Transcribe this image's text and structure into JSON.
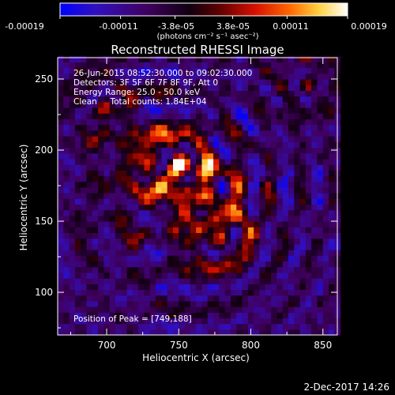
{
  "colorbar": {
    "tick_labels": [
      "-0.00019",
      "-0.00011",
      "-3.8e-05",
      "3.8e-05",
      "0.00011",
      "0.00019"
    ],
    "tick_values": [
      -0.00019,
      -0.00011,
      -3.8e-05,
      3.8e-05,
      0.00011,
      0.00019
    ],
    "range": [
      -0.00019,
      0.00019
    ],
    "units": "(photons cm⁻² s⁻¹ asec⁻²)",
    "colormap": [
      "#0000ff",
      "#3010c0",
      "#400060",
      "#000000",
      "#6a0000",
      "#d81000",
      "#ff6a00",
      "#ffd040",
      "#ffffff"
    ]
  },
  "footer": {
    "timestamp": "2-Dec-2017 14:26"
  },
  "chart_data": {
    "type": "heatmap",
    "title": "Reconstructed RHESSI Image",
    "xlabel": "Heliocentric X (arcsec)",
    "ylabel": "Heliocentric Y (arcsec)",
    "xlim": [
      666,
      860
    ],
    "ylim": [
      70,
      265
    ],
    "xticks": [
      700,
      750,
      800,
      850
    ],
    "yticks": [
      100,
      150,
      200,
      250
    ],
    "annotations": [
      "26-Jun-2015 08:52:30.000 to 09:02:30.000",
      "Detectors: 3F 5F 6F 7F 8F 9F, Att 0",
      "Energy Range: 25.0 - 50.0 keV",
      "Clean     Total counts: 1.84E+04"
    ],
    "peak_label": "Position of Peak = [749,188]",
    "peak": [
      749,
      188
    ],
    "sources": [
      {
        "x": 749,
        "y": 188,
        "peak": 0.00019
      },
      {
        "x": 778,
        "y": 135,
        "peak": 0.00016
      },
      {
        "x": 770,
        "y": 165,
        "peak": 0.00014
      },
      {
        "x": 726,
        "y": 190,
        "peak": 0.00011
      },
      {
        "x": 696,
        "y": 227,
        "peak": 9e-05
      },
      {
        "x": 838,
        "y": 244,
        "peak": 8e-05
      },
      {
        "x": 708,
        "y": 152,
        "peak": 6e-05
      }
    ],
    "value_range": [
      -0.00019,
      0.00019
    ]
  }
}
